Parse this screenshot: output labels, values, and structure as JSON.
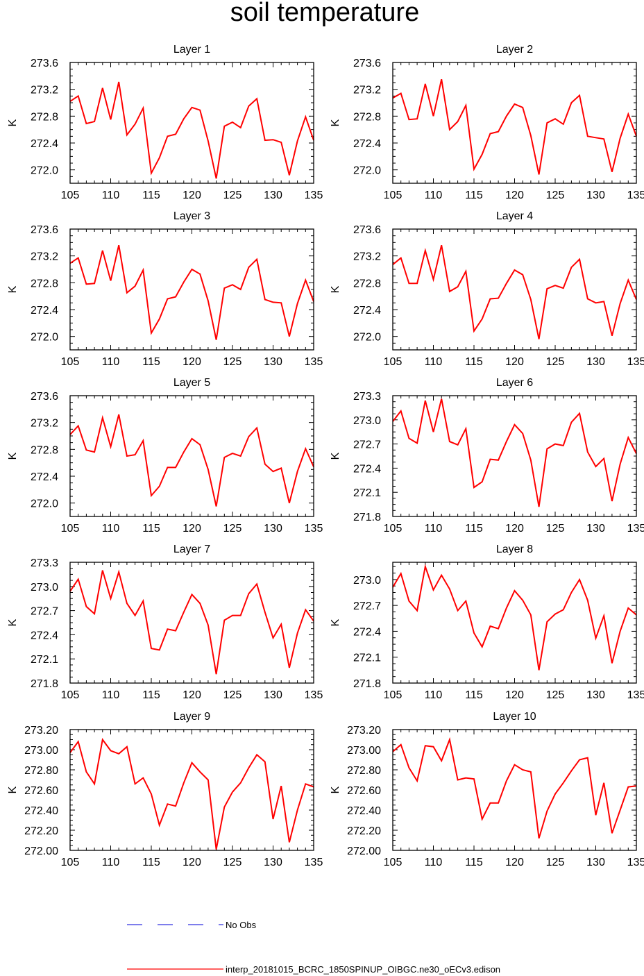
{
  "figure_title": "soil temperature",
  "chart_data": [
    {
      "type": "line",
      "title": "Layer 1",
      "ylabel": "K",
      "xlim": [
        105,
        135
      ],
      "ylim": [
        271.8,
        273.6
      ],
      "xticks": [
        "105",
        "110",
        "115",
        "120",
        "125",
        "130",
        "135"
      ],
      "yticks": [
        "272.0",
        "272.4",
        "272.8",
        "273.2",
        "273.6"
      ],
      "x": [
        105,
        106,
        107,
        108,
        109,
        110,
        111,
        112,
        113,
        114,
        115,
        116,
        117,
        118,
        119,
        120,
        121,
        122,
        123,
        124,
        125,
        126,
        127,
        128,
        129,
        130,
        131,
        132,
        133,
        134,
        135
      ],
      "series": [
        {
          "name": "interp_20181015_BCRC_1850SPINUP_OIBGC.ne30_oECv3.edison",
          "values": [
            273.02,
            273.1,
            272.69,
            272.72,
            273.22,
            272.75,
            273.31,
            272.52,
            272.68,
            272.92,
            271.95,
            272.18,
            272.5,
            272.53,
            272.76,
            272.93,
            272.89,
            272.43,
            271.87,
            272.65,
            272.71,
            272.63,
            272.95,
            273.06,
            272.44,
            272.45,
            272.41,
            271.92,
            272.43,
            272.79,
            272.44
          ]
        }
      ]
    },
    {
      "type": "line",
      "title": "Layer 2",
      "ylabel": "K",
      "xlim": [
        105,
        135
      ],
      "ylim": [
        271.8,
        273.6
      ],
      "xticks": [
        "105",
        "110",
        "115",
        "120",
        "125",
        "130",
        "135"
      ],
      "yticks": [
        "272.0",
        "272.4",
        "272.8",
        "273.2",
        "273.6"
      ],
      "x": [
        105,
        106,
        107,
        108,
        109,
        110,
        111,
        112,
        113,
        114,
        115,
        116,
        117,
        118,
        119,
        120,
        121,
        122,
        123,
        124,
        125,
        126,
        127,
        128,
        129,
        130,
        131,
        132,
        133,
        134,
        135
      ],
      "series": [
        {
          "name": "interp_20181015_BCRC_1850SPINUP_OIBGC.ne30_oECv3.edison",
          "values": [
            273.07,
            273.14,
            272.75,
            272.76,
            273.28,
            272.8,
            273.35,
            272.6,
            272.72,
            272.96,
            272.01,
            272.23,
            272.54,
            272.57,
            272.8,
            272.98,
            272.93,
            272.51,
            271.93,
            272.7,
            272.76,
            272.68,
            273.0,
            273.11,
            272.5,
            272.48,
            272.46,
            271.97,
            272.47,
            272.83,
            272.5
          ]
        }
      ]
    },
    {
      "type": "line",
      "title": "Layer 3",
      "ylabel": "K",
      "xlim": [
        105,
        135
      ],
      "ylim": [
        271.8,
        273.6
      ],
      "xticks": [
        "105",
        "110",
        "115",
        "120",
        "125",
        "130",
        "135"
      ],
      "yticks": [
        "272.0",
        "272.4",
        "272.8",
        "273.2",
        "273.6"
      ],
      "x": [
        105,
        106,
        107,
        108,
        109,
        110,
        111,
        112,
        113,
        114,
        115,
        116,
        117,
        118,
        119,
        120,
        121,
        122,
        123,
        124,
        125,
        126,
        127,
        128,
        129,
        130,
        131,
        132,
        133,
        134,
        135
      ],
      "series": [
        {
          "name": "interp_20181015_BCRC_1850SPINUP_OIBGC.ne30_oECv3.edison",
          "values": [
            273.09,
            273.17,
            272.78,
            272.79,
            273.28,
            272.83,
            273.36,
            272.65,
            272.75,
            272.99,
            272.05,
            272.26,
            272.56,
            272.59,
            272.81,
            273.0,
            272.93,
            272.53,
            271.95,
            272.72,
            272.77,
            272.7,
            273.03,
            273.15,
            272.55,
            272.51,
            272.5,
            272.0,
            272.49,
            272.84,
            272.52
          ]
        }
      ]
    },
    {
      "type": "line",
      "title": "Layer 4",
      "ylabel": "K",
      "xlim": [
        105,
        135
      ],
      "ylim": [
        271.8,
        273.6
      ],
      "xticks": [
        "105",
        "110",
        "115",
        "120",
        "125",
        "130",
        "135"
      ],
      "yticks": [
        "272.0",
        "272.4",
        "272.8",
        "273.2",
        "273.6"
      ],
      "x": [
        105,
        106,
        107,
        108,
        109,
        110,
        111,
        112,
        113,
        114,
        115,
        116,
        117,
        118,
        119,
        120,
        121,
        122,
        123,
        124,
        125,
        126,
        127,
        128,
        129,
        130,
        131,
        132,
        133,
        134,
        135
      ],
      "series": [
        {
          "name": "interp_20181015_BCRC_1850SPINUP_OIBGC.ne30_oECv3.edison",
          "values": [
            273.07,
            273.17,
            272.79,
            272.79,
            273.28,
            272.85,
            273.36,
            272.67,
            272.74,
            272.97,
            272.08,
            272.26,
            272.56,
            272.57,
            272.79,
            272.99,
            272.92,
            272.55,
            271.96,
            272.71,
            272.76,
            272.72,
            273.03,
            273.15,
            272.56,
            272.5,
            272.52,
            272.01,
            272.49,
            272.84,
            272.55
          ]
        }
      ]
    },
    {
      "type": "line",
      "title": "Layer 5",
      "ylabel": "K",
      "xlim": [
        105,
        135
      ],
      "ylim": [
        271.8,
        273.6
      ],
      "xticks": [
        "105",
        "110",
        "115",
        "120",
        "125",
        "130",
        "135"
      ],
      "yticks": [
        "272.0",
        "272.4",
        "272.8",
        "273.2",
        "273.6"
      ],
      "x": [
        105,
        106,
        107,
        108,
        109,
        110,
        111,
        112,
        113,
        114,
        115,
        116,
        117,
        118,
        119,
        120,
        121,
        122,
        123,
        124,
        125,
        126,
        127,
        128,
        129,
        130,
        131,
        132,
        133,
        134,
        135
      ],
      "series": [
        {
          "name": "interp_20181015_BCRC_1850SPINUP_OIBGC.ne30_oECv3.edison",
          "values": [
            273.02,
            273.15,
            272.79,
            272.76,
            273.27,
            272.84,
            273.32,
            272.7,
            272.72,
            272.93,
            272.11,
            272.25,
            272.53,
            272.53,
            272.76,
            272.96,
            272.87,
            272.5,
            271.95,
            272.68,
            272.74,
            272.7,
            272.99,
            273.12,
            272.58,
            272.47,
            272.52,
            272.0,
            272.47,
            272.81,
            272.54
          ]
        }
      ]
    },
    {
      "type": "line",
      "title": "Layer 6",
      "ylabel": "K",
      "xlim": [
        105,
        135
      ],
      "ylim": [
        271.8,
        273.3
      ],
      "xticks": [
        "105",
        "110",
        "115",
        "120",
        "125",
        "130",
        "135"
      ],
      "yticks": [
        "271.8",
        "272.1",
        "272.4",
        "272.7",
        "273.0",
        "273.3"
      ],
      "x": [
        105,
        106,
        107,
        108,
        109,
        110,
        111,
        112,
        113,
        114,
        115,
        116,
        117,
        118,
        119,
        120,
        121,
        122,
        123,
        124,
        125,
        126,
        127,
        128,
        129,
        130,
        131,
        132,
        133,
        134,
        135
      ],
      "series": [
        {
          "name": "interp_20181015_BCRC_1850SPINUP_OIBGC.ne30_oECv3.edison",
          "values": [
            272.98,
            273.11,
            272.77,
            272.71,
            273.24,
            272.85,
            273.26,
            272.73,
            272.69,
            272.89,
            272.16,
            272.23,
            272.51,
            272.5,
            272.73,
            272.94,
            272.83,
            272.5,
            271.92,
            272.64,
            272.7,
            272.68,
            272.97,
            273.08,
            272.6,
            272.42,
            272.52,
            271.99,
            272.45,
            272.78,
            272.58
          ]
        }
      ]
    },
    {
      "type": "line",
      "title": "Layer 7",
      "ylabel": "K",
      "xlim": [
        105,
        135
      ],
      "ylim": [
        271.8,
        273.3
      ],
      "xticks": [
        "105",
        "110",
        "115",
        "120",
        "125",
        "130",
        "135"
      ],
      "yticks": [
        "271.8",
        "272.1",
        "272.4",
        "272.7",
        "273.0",
        "273.3"
      ],
      "x": [
        105,
        106,
        107,
        108,
        109,
        110,
        111,
        112,
        113,
        114,
        115,
        116,
        117,
        118,
        119,
        120,
        121,
        122,
        123,
        124,
        125,
        126,
        127,
        128,
        129,
        130,
        131,
        132,
        133,
        134,
        135
      ],
      "series": [
        {
          "name": "interp_20181015_BCRC_1850SPINUP_OIBGC.ne30_oECv3.edison",
          "values": [
            272.94,
            273.09,
            272.75,
            272.66,
            273.2,
            272.85,
            273.18,
            272.79,
            272.64,
            272.82,
            272.23,
            272.21,
            272.47,
            272.45,
            272.68,
            272.9,
            272.79,
            272.52,
            271.91,
            272.58,
            272.64,
            272.64,
            272.91,
            273.03,
            272.68,
            272.36,
            272.53,
            271.99,
            272.42,
            272.71,
            272.57
          ]
        }
      ]
    },
    {
      "type": "line",
      "title": "Layer 8",
      "ylabel": "K",
      "xlim": [
        105,
        135
      ],
      "ylim": [
        271.8,
        273.2
      ],
      "xticks": [
        "105",
        "110",
        "115",
        "120",
        "125",
        "130",
        "135"
      ],
      "yticks": [
        "271.8",
        "272.1",
        "272.4",
        "272.7",
        "273.0"
      ],
      "x": [
        105,
        106,
        107,
        108,
        109,
        110,
        111,
        112,
        113,
        114,
        115,
        116,
        117,
        118,
        119,
        120,
        121,
        122,
        123,
        124,
        125,
        126,
        127,
        128,
        129,
        130,
        131,
        132,
        133,
        134,
        135
      ],
      "series": [
        {
          "name": "interp_20181015_BCRC_1850SPINUP_OIBGC.ne30_oECv3.edison",
          "values": [
            272.91,
            273.07,
            272.75,
            272.64,
            273.15,
            272.88,
            273.05,
            272.89,
            272.64,
            272.75,
            272.38,
            272.22,
            272.46,
            272.43,
            272.67,
            272.87,
            272.76,
            272.59,
            271.95,
            272.51,
            272.6,
            272.65,
            272.85,
            273.0,
            272.76,
            272.32,
            272.58,
            272.03,
            272.4,
            272.67,
            272.59
          ]
        }
      ]
    },
    {
      "type": "line",
      "title": "Layer 9",
      "ylabel": "K",
      "xlim": [
        105,
        135
      ],
      "ylim": [
        272.0,
        273.2
      ],
      "xticks": [
        "105",
        "110",
        "115",
        "120",
        "125",
        "130",
        "135"
      ],
      "yticks": [
        "272.00",
        "272.20",
        "272.40",
        "272.60",
        "272.80",
        "273.00",
        "273.20"
      ],
      "x": [
        105,
        106,
        107,
        108,
        109,
        110,
        111,
        112,
        113,
        114,
        115,
        116,
        117,
        118,
        119,
        120,
        121,
        122,
        123,
        124,
        125,
        126,
        127,
        128,
        129,
        130,
        131,
        132,
        133,
        134,
        135
      ],
      "series": [
        {
          "name": "interp_20181015_BCRC_1850SPINUP_OIBGC.ne30_oECv3.edison",
          "values": [
            272.97,
            273.08,
            272.78,
            272.66,
            273.1,
            272.99,
            272.96,
            273.03,
            272.66,
            272.72,
            272.56,
            272.25,
            272.46,
            272.44,
            272.67,
            272.87,
            272.78,
            272.7,
            272.01,
            272.43,
            272.58,
            272.67,
            272.82,
            272.95,
            272.88,
            272.31,
            272.64,
            272.08,
            272.4,
            272.66,
            272.63
          ]
        }
      ]
    },
    {
      "type": "line",
      "title": "Layer 10",
      "ylabel": "K",
      "xlim": [
        105,
        135
      ],
      "ylim": [
        272.0,
        273.2
      ],
      "xticks": [
        "105",
        "110",
        "115",
        "120",
        "125",
        "130",
        "135"
      ],
      "yticks": [
        "272.00",
        "272.20",
        "272.40",
        "272.60",
        "272.80",
        "273.00",
        "273.20"
      ],
      "x": [
        105,
        106,
        107,
        108,
        109,
        110,
        111,
        112,
        113,
        114,
        115,
        116,
        117,
        118,
        119,
        120,
        121,
        122,
        123,
        124,
        125,
        126,
        127,
        128,
        129,
        130,
        131,
        132,
        133,
        134,
        135
      ],
      "series": [
        {
          "name": "interp_20181015_BCRC_1850SPINUP_OIBGC.ne30_oECv3.edison",
          "values": [
            272.98,
            273.05,
            272.82,
            272.69,
            273.04,
            273.03,
            272.89,
            273.1,
            272.7,
            272.72,
            272.71,
            272.31,
            272.47,
            272.47,
            272.69,
            272.85,
            272.8,
            272.78,
            272.12,
            272.39,
            272.56,
            272.67,
            272.79,
            272.9,
            272.92,
            272.35,
            272.67,
            272.17,
            272.4,
            272.63,
            272.64
          ]
        }
      ]
    }
  ],
  "legend": [
    {
      "label": "No Obs",
      "color": "#3030e0",
      "style": "dashed"
    },
    {
      "label": "interp_20181015_BCRC_1850SPINUP_OIBGC.ne30_oECv3.edison",
      "color": "#ff0000",
      "style": "solid"
    }
  ]
}
